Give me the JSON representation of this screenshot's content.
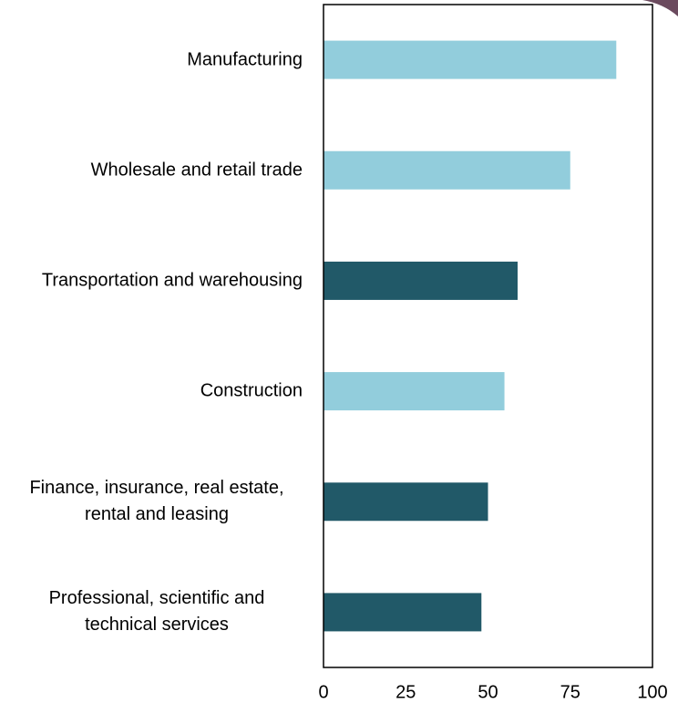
{
  "chart_data": {
    "type": "barh",
    "categories": [
      "Manufacturing",
      "Wholesale and retail trade",
      "Transportation and warehousing",
      "Construction",
      "Finance, insurance, real estate, rental and leasing",
      "Professional, scientific and technical services"
    ],
    "values": [
      89,
      75,
      59,
      55,
      50,
      48
    ],
    "colors": [
      "#92cddc",
      "#92cddc",
      "#215968",
      "#92cddc",
      "#215968",
      "#215968"
    ],
    "xlim": [
      0,
      100
    ],
    "xticks": [
      0,
      25,
      50,
      75,
      100
    ]
  }
}
